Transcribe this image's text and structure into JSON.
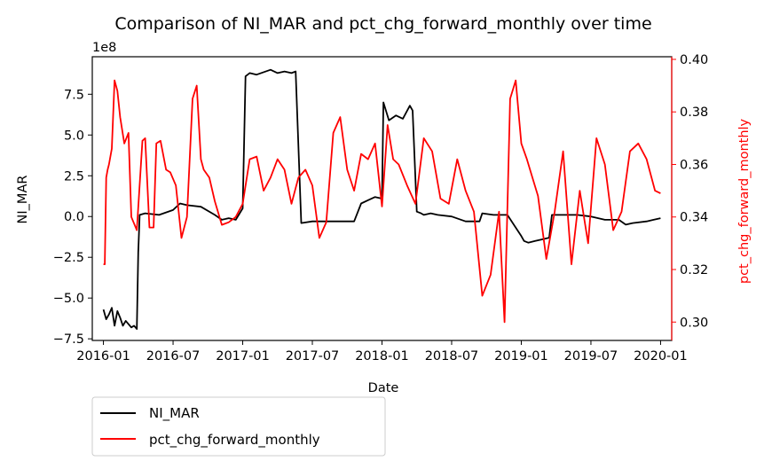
{
  "chart_data": {
    "type": "line",
    "title": "Comparison of NI_MAR and pct_chg_forward_monthly over time",
    "xlabel": "Date",
    "ylabel": "NI_MAR",
    "ylabel_right": "pct_chg_forward_monthly",
    "y_offset_text": "1e8",
    "x_ticks": [
      "2016-01",
      "2016-07",
      "2017-01",
      "2017-07",
      "2018-01",
      "2018-07",
      "2019-01",
      "2019-07",
      "2020-01"
    ],
    "y_ticks": [
      -7.5,
      -5.0,
      -2.5,
      0.0,
      2.5,
      5.0,
      7.5
    ],
    "y_tick_labels": [
      "−7.5",
      "−5.0",
      "−2.5",
      "0.0",
      "2.5",
      "5.0",
      "7.5"
    ],
    "y2_ticks": [
      0.3,
      0.32,
      0.34,
      0.36,
      0.38,
      0.4
    ],
    "y2_tick_labels": [
      "0.30",
      "0.32",
      "0.34",
      "0.36",
      "0.38",
      "0.40"
    ],
    "ylim": [
      -7.6,
      9.8
    ],
    "ylim_right": [
      0.293,
      0.401
    ],
    "xlim_years": [
      2015.92,
      2020.08
    ],
    "legend_position": "below-left",
    "grid": false,
    "series": [
      {
        "name": "NI_MAR",
        "axis": "left",
        "color": "#000000",
        "x": [
          2016.0,
          2016.02,
          2016.04,
          2016.06,
          2016.08,
          2016.1,
          2016.12,
          2016.14,
          2016.16,
          2016.18,
          2016.2,
          2016.22,
          2016.24,
          2016.25,
          2016.26,
          2016.3,
          2016.4,
          2016.5,
          2016.55,
          2016.6,
          2016.7,
          2016.8,
          2016.85,
          2016.9,
          2016.95,
          2017.0,
          2017.02,
          2017.05,
          2017.1,
          2017.2,
          2017.25,
          2017.3,
          2017.35,
          2017.38,
          2017.42,
          2017.5,
          2017.6,
          2017.7,
          2017.8,
          2017.85,
          2017.9,
          2017.95,
          2018.0,
          2018.01,
          2018.05,
          2018.1,
          2018.15,
          2018.2,
          2018.22,
          2018.25,
          2018.28,
          2018.3,
          2018.35,
          2018.4,
          2018.5,
          2018.6,
          2018.7,
          2018.72,
          2018.8,
          2018.9,
          2019.0,
          2019.02,
          2019.05,
          2019.1,
          2019.15,
          2019.2,
          2019.22,
          2019.3,
          2019.4,
          2019.5,
          2019.6,
          2019.7,
          2019.75,
          2019.8,
          2019.9,
          2019.95,
          2020.0
        ],
        "y": [
          -5.7,
          -6.3,
          -6.0,
          -5.6,
          -6.7,
          -5.8,
          -6.2,
          -6.7,
          -6.4,
          -6.6,
          -6.8,
          -6.7,
          -6.9,
          -2.2,
          0.1,
          0.2,
          0.1,
          0.4,
          0.8,
          0.7,
          0.6,
          0.1,
          -0.2,
          -0.1,
          -0.2,
          0.5,
          8.6,
          8.8,
          8.7,
          9.0,
          8.8,
          8.9,
          8.8,
          8.9,
          -0.4,
          -0.3,
          -0.3,
          -0.3,
          -0.3,
          0.8,
          1.0,
          1.2,
          1.1,
          7.0,
          5.9,
          6.2,
          6.0,
          6.8,
          6.5,
          0.3,
          0.2,
          0.1,
          0.2,
          0.1,
          0.0,
          -0.3,
          -0.3,
          0.2,
          0.1,
          0.1,
          -1.2,
          -1.5,
          -1.6,
          -1.5,
          -1.4,
          -1.3,
          0.1,
          0.1,
          0.1,
          0.0,
          -0.2,
          -0.2,
          -0.5,
          -0.4,
          -0.3,
          -0.2,
          -0.1
        ]
      },
      {
        "name": "pct_chg_forward_monthly",
        "axis": "right",
        "color": "#ff0000",
        "x": [
          2016.0,
          2016.01,
          2016.02,
          2016.03,
          2016.04,
          2016.06,
          2016.08,
          2016.1,
          2016.12,
          2016.15,
          2016.18,
          2016.2,
          2016.24,
          2016.28,
          2016.3,
          2016.33,
          2016.36,
          2016.38,
          2016.41,
          2016.45,
          2016.48,
          2016.52,
          2016.56,
          2016.6,
          2016.64,
          2016.67,
          2016.7,
          2016.72,
          2016.76,
          2016.8,
          2016.85,
          2016.9,
          2016.95,
          2017.0,
          2017.05,
          2017.1,
          2017.15,
          2017.2,
          2017.25,
          2017.3,
          2017.35,
          2017.4,
          2017.45,
          2017.5,
          2017.55,
          2017.6,
          2017.65,
          2017.7,
          2017.75,
          2017.8,
          2017.85,
          2017.9,
          2017.95,
          2018.0,
          2018.04,
          2018.08,
          2018.12,
          2018.18,
          2018.24,
          2018.3,
          2018.36,
          2018.42,
          2018.48,
          2018.54,
          2018.6,
          2018.66,
          2018.72,
          2018.78,
          2018.84,
          2018.88,
          2018.92,
          2018.96,
          2019.0,
          2019.04,
          2019.08,
          2019.12,
          2019.18,
          2019.24,
          2019.3,
          2019.36,
          2019.42,
          2019.48,
          2019.54,
          2019.6,
          2019.66,
          2019.72,
          2019.78,
          2019.84,
          2019.9,
          2019.96,
          2020.0
        ],
        "y": [
          0.322,
          0.322,
          0.355,
          0.358,
          0.36,
          0.366,
          0.392,
          0.388,
          0.378,
          0.368,
          0.372,
          0.34,
          0.335,
          0.369,
          0.37,
          0.336,
          0.336,
          0.368,
          0.369,
          0.358,
          0.357,
          0.352,
          0.332,
          0.34,
          0.385,
          0.39,
          0.362,
          0.358,
          0.355,
          0.346,
          0.337,
          0.338,
          0.34,
          0.345,
          0.362,
          0.363,
          0.35,
          0.355,
          0.362,
          0.358,
          0.345,
          0.355,
          0.358,
          0.352,
          0.332,
          0.338,
          0.372,
          0.378,
          0.358,
          0.35,
          0.364,
          0.362,
          0.368,
          0.344,
          0.375,
          0.362,
          0.36,
          0.352,
          0.345,
          0.37,
          0.365,
          0.347,
          0.345,
          0.362,
          0.35,
          0.342,
          0.31,
          0.318,
          0.342,
          0.3,
          0.385,
          0.392,
          0.368,
          0.362,
          0.355,
          0.348,
          0.324,
          0.342,
          0.365,
          0.322,
          0.35,
          0.33,
          0.37,
          0.36,
          0.335,
          0.342,
          0.365,
          0.368,
          0.362,
          0.35,
          0.349
        ]
      }
    ]
  }
}
